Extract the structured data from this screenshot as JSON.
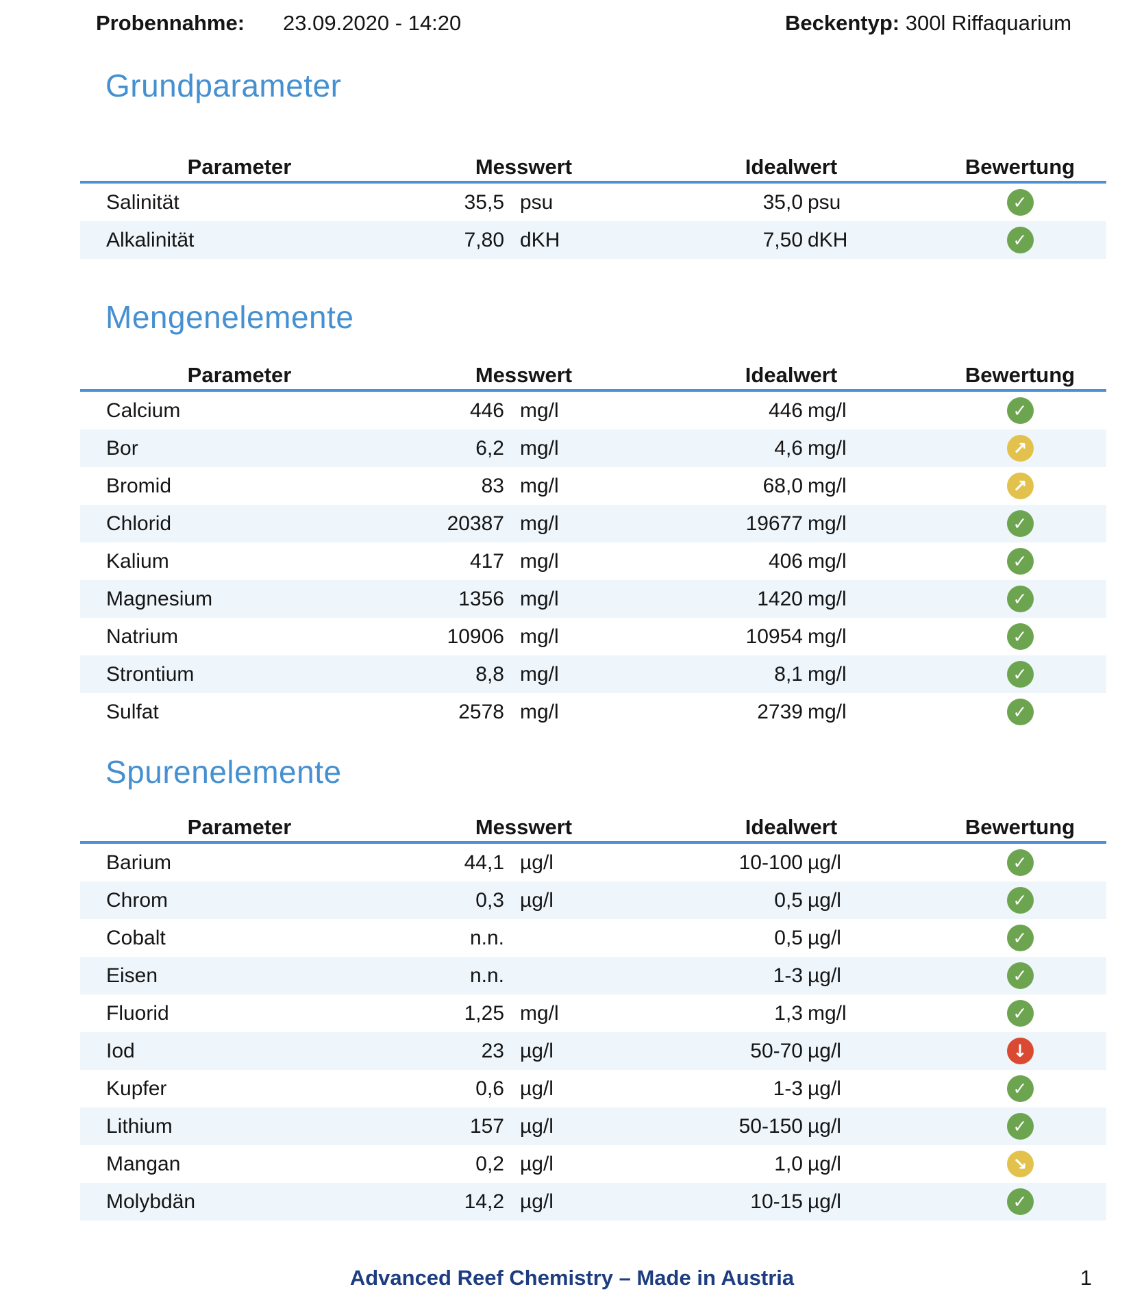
{
  "header": {
    "probennahme_label": "Probennahme:",
    "probennahme_value": "23.09.2020 - 14:20",
    "beckentyp_label": "Beckentyp:",
    "beckentyp_value": "300l Riffaquarium"
  },
  "columns": {
    "parameter": "Parameter",
    "messwert": "Messwert",
    "idealwert": "Idealwert",
    "bewertung": "Bewertung"
  },
  "sections": [
    {
      "title": "Grundparameter",
      "rows": [
        {
          "parameter": "Salinität",
          "messwert": "35,5",
          "messwert_unit": "psu",
          "idealwert": "35,0",
          "idealwert_unit": "psu",
          "bewertung": "check-circle",
          "level": "ok"
        },
        {
          "parameter": "Alkalinität",
          "messwert": "7,80",
          "messwert_unit": "dKH",
          "idealwert": "7,50",
          "idealwert_unit": "dKH",
          "bewertung": "check-circle",
          "level": "ok"
        }
      ]
    },
    {
      "title": "Mengenelemente",
      "rows": [
        {
          "parameter": "Calcium",
          "messwert": "446",
          "messwert_unit": "mg/l",
          "idealwert": "446",
          "idealwert_unit": "mg/l",
          "bewertung": "check-circle",
          "level": "ok"
        },
        {
          "parameter": "Bor",
          "messwert": "6,2",
          "messwert_unit": "mg/l",
          "idealwert": "4,6",
          "idealwert_unit": "mg/l",
          "bewertung": "arrow-up-right-circle",
          "level": "warn"
        },
        {
          "parameter": "Bromid",
          "messwert": "83",
          "messwert_unit": "mg/l",
          "idealwert": "68,0",
          "idealwert_unit": "mg/l",
          "bewertung": "arrow-up-right-circle",
          "level": "warn"
        },
        {
          "parameter": "Chlorid",
          "messwert": "20387",
          "messwert_unit": "mg/l",
          "idealwert": "19677",
          "idealwert_unit": "mg/l",
          "bewertung": "check-circle",
          "level": "ok"
        },
        {
          "parameter": "Kalium",
          "messwert": "417",
          "messwert_unit": "mg/l",
          "idealwert": "406",
          "idealwert_unit": "mg/l",
          "bewertung": "check-circle",
          "level": "ok"
        },
        {
          "parameter": "Magnesium",
          "messwert": "1356",
          "messwert_unit": "mg/l",
          "idealwert": "1420",
          "idealwert_unit": "mg/l",
          "bewertung": "check-circle",
          "level": "ok"
        },
        {
          "parameter": "Natrium",
          "messwert": "10906",
          "messwert_unit": "mg/l",
          "idealwert": "10954",
          "idealwert_unit": "mg/l",
          "bewertung": "check-circle",
          "level": "ok"
        },
        {
          "parameter": "Strontium",
          "messwert": "8,8",
          "messwert_unit": "mg/l",
          "idealwert": "8,1",
          "idealwert_unit": "mg/l",
          "bewertung": "check-circle",
          "level": "ok"
        },
        {
          "parameter": "Sulfat",
          "messwert": "2578",
          "messwert_unit": "mg/l",
          "idealwert": "2739",
          "idealwert_unit": "mg/l",
          "bewertung": "check-circle",
          "level": "ok"
        }
      ]
    },
    {
      "title": "Spurenelemente",
      "rows": [
        {
          "parameter": "Barium",
          "messwert": "44,1",
          "messwert_unit": "µg/l",
          "idealwert": "10-100",
          "idealwert_unit": "µg/l",
          "bewertung": "check-circle",
          "level": "ok"
        },
        {
          "parameter": "Chrom",
          "messwert": "0,3",
          "messwert_unit": "µg/l",
          "idealwert": "0,5",
          "idealwert_unit": "µg/l",
          "bewertung": "check-circle",
          "level": "ok"
        },
        {
          "parameter": "Cobalt",
          "messwert": "n.n.",
          "messwert_unit": "",
          "idealwert": "0,5",
          "idealwert_unit": "µg/l",
          "bewertung": "check-circle",
          "level": "ok"
        },
        {
          "parameter": "Eisen",
          "messwert": "n.n.",
          "messwert_unit": "",
          "idealwert": "1-3",
          "idealwert_unit": "µg/l",
          "bewertung": "check-circle",
          "level": "ok"
        },
        {
          "parameter": "Fluorid",
          "messwert": "1,25",
          "messwert_unit": "mg/l",
          "idealwert": "1,3",
          "idealwert_unit": "mg/l",
          "bewertung": "check-circle",
          "level": "ok"
        },
        {
          "parameter": "Iod",
          "messwert": "23",
          "messwert_unit": "µg/l",
          "idealwert": "50-70",
          "idealwert_unit": "µg/l",
          "bewertung": "arrow-down-circle",
          "level": "alert"
        },
        {
          "parameter": "Kupfer",
          "messwert": "0,6",
          "messwert_unit": "µg/l",
          "idealwert": "1-3",
          "idealwert_unit": "µg/l",
          "bewertung": "check-circle",
          "level": "ok"
        },
        {
          "parameter": "Lithium",
          "messwert": "157",
          "messwert_unit": "µg/l",
          "idealwert": "50-150",
          "idealwert_unit": "µg/l",
          "bewertung": "check-circle",
          "level": "ok"
        },
        {
          "parameter": "Mangan",
          "messwert": "0,2",
          "messwert_unit": "µg/l",
          "idealwert": "1,0",
          "idealwert_unit": "µg/l",
          "bewertung": "arrow-down-right-circle",
          "level": "warn"
        },
        {
          "parameter": "Molybdän",
          "messwert": "14,2",
          "messwert_unit": "µg/l",
          "idealwert": "10-15",
          "idealwert_unit": "µg/l",
          "bewertung": "check-circle",
          "level": "ok"
        }
      ]
    }
  ],
  "footer": {
    "brand": "Advanced Reef Chemistry – Made in Austria",
    "page_number": "1"
  },
  "colors": {
    "accent_blue": "#4590d0",
    "table_line_blue": "#4a90d2",
    "row_alt": "#eef5fb",
    "ok_green": "#6ca450",
    "warn_yellow": "#e2c24c",
    "alert_red": "#da4931",
    "footer_navy": "#1d3d80"
  },
  "icon_glyphs": {
    "check-circle": "✓",
    "arrow-up-right-circle": "↗",
    "arrow-down-circle": "↓",
    "arrow-down-right-circle": "↘"
  }
}
